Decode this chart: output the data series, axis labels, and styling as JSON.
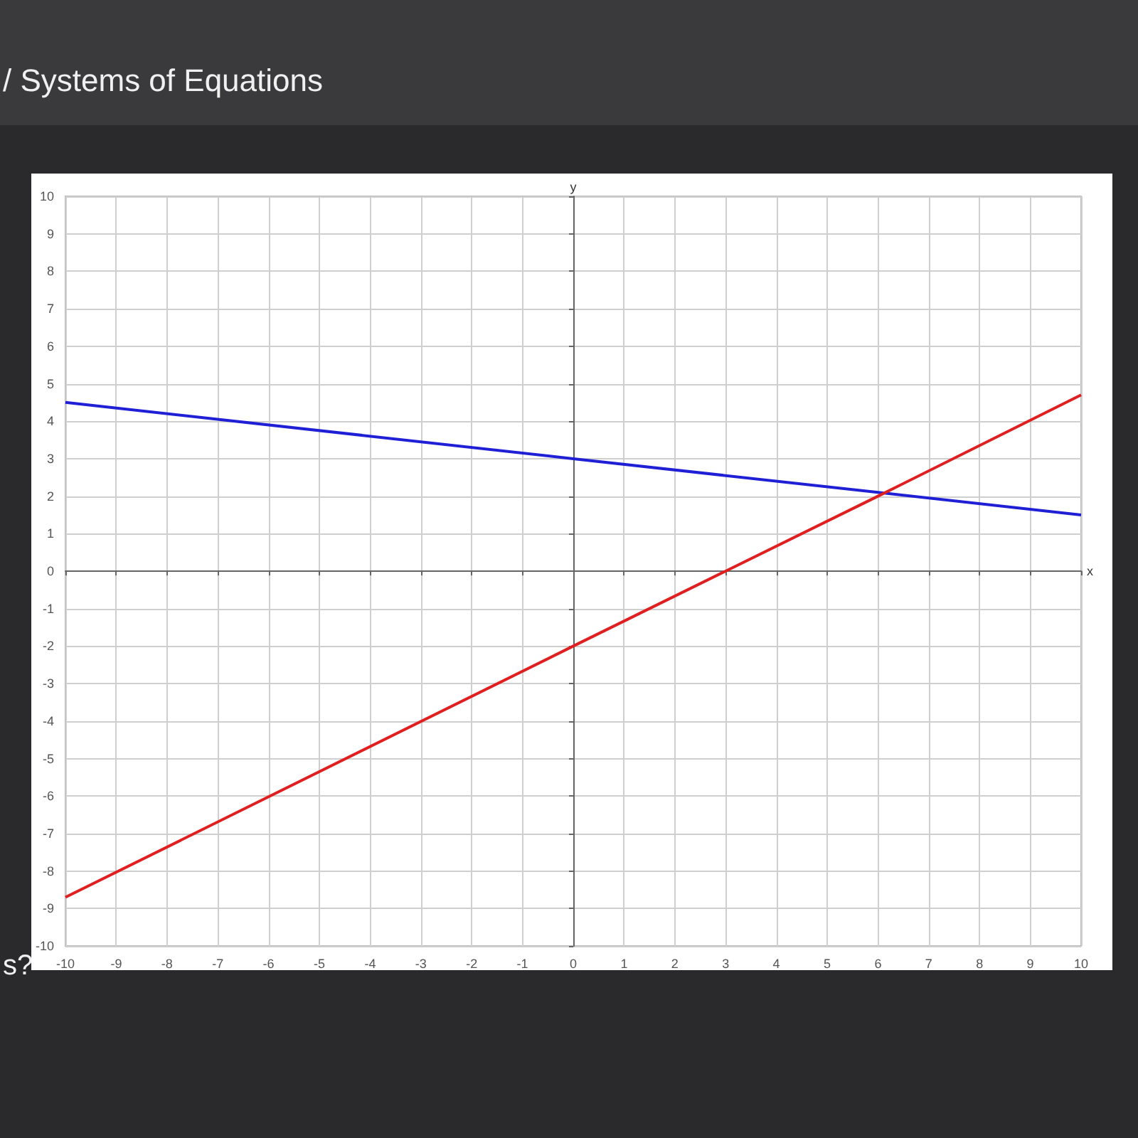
{
  "chart_data": {
    "type": "line",
    "title": "/ Systems of Equations",
    "xlabel": "x",
    "ylabel": "y",
    "annotations": [
      "s?"
    ],
    "xlim": [
      -10,
      10
    ],
    "ylim": [
      -10,
      10
    ],
    "xticks": [
      -10,
      -9,
      -8,
      -7,
      -6,
      -5,
      -4,
      -3,
      -2,
      -1,
      0,
      1,
      2,
      3,
      4,
      5,
      6,
      7,
      8,
      9,
      10
    ],
    "yticks": [
      -10,
      -9,
      -8,
      -7,
      -6,
      -5,
      -4,
      -3,
      -2,
      -1,
      0,
      1,
      2,
      3,
      4,
      5,
      6,
      7,
      8,
      9,
      10
    ],
    "series": [
      {
        "color": "#1f1fd6",
        "x": [
          -10,
          0,
          6,
          10
        ],
        "values": [
          4.5,
          3,
          2.1,
          1.5
        ]
      },
      {
        "color": "#e02020",
        "x": [
          -10,
          0,
          3,
          6,
          10
        ],
        "values": [
          -8.7,
          -2,
          0,
          2,
          4.7
        ]
      }
    ],
    "grid": true,
    "marker": "none",
    "line_style": "solid"
  }
}
